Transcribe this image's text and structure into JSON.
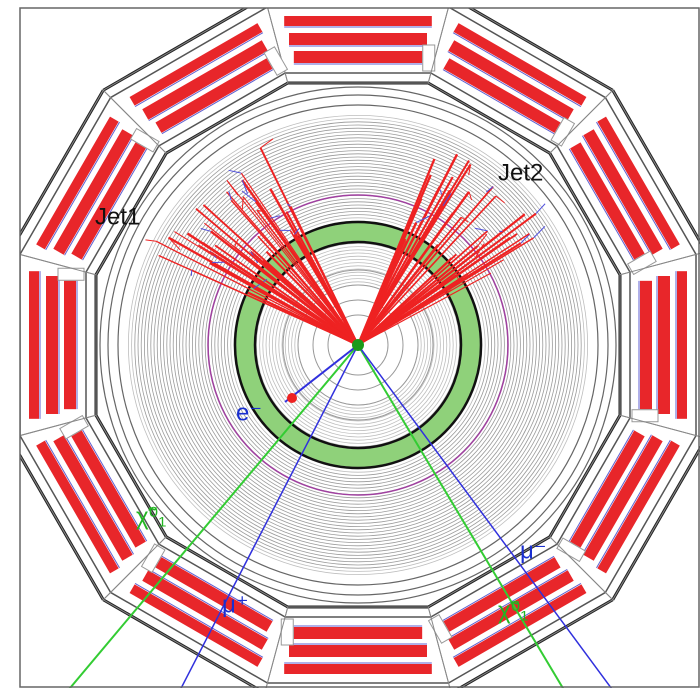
{
  "labels": {
    "jet1": "Jet1",
    "jet2": "Jet2",
    "electron": "e⁻",
    "muon_plus": "μ⁺",
    "muon_minus": "μ⁻",
    "neutralino_left": "χ̃⁰₁",
    "neutralino_right": "χ̃⁰₁"
  }
}
